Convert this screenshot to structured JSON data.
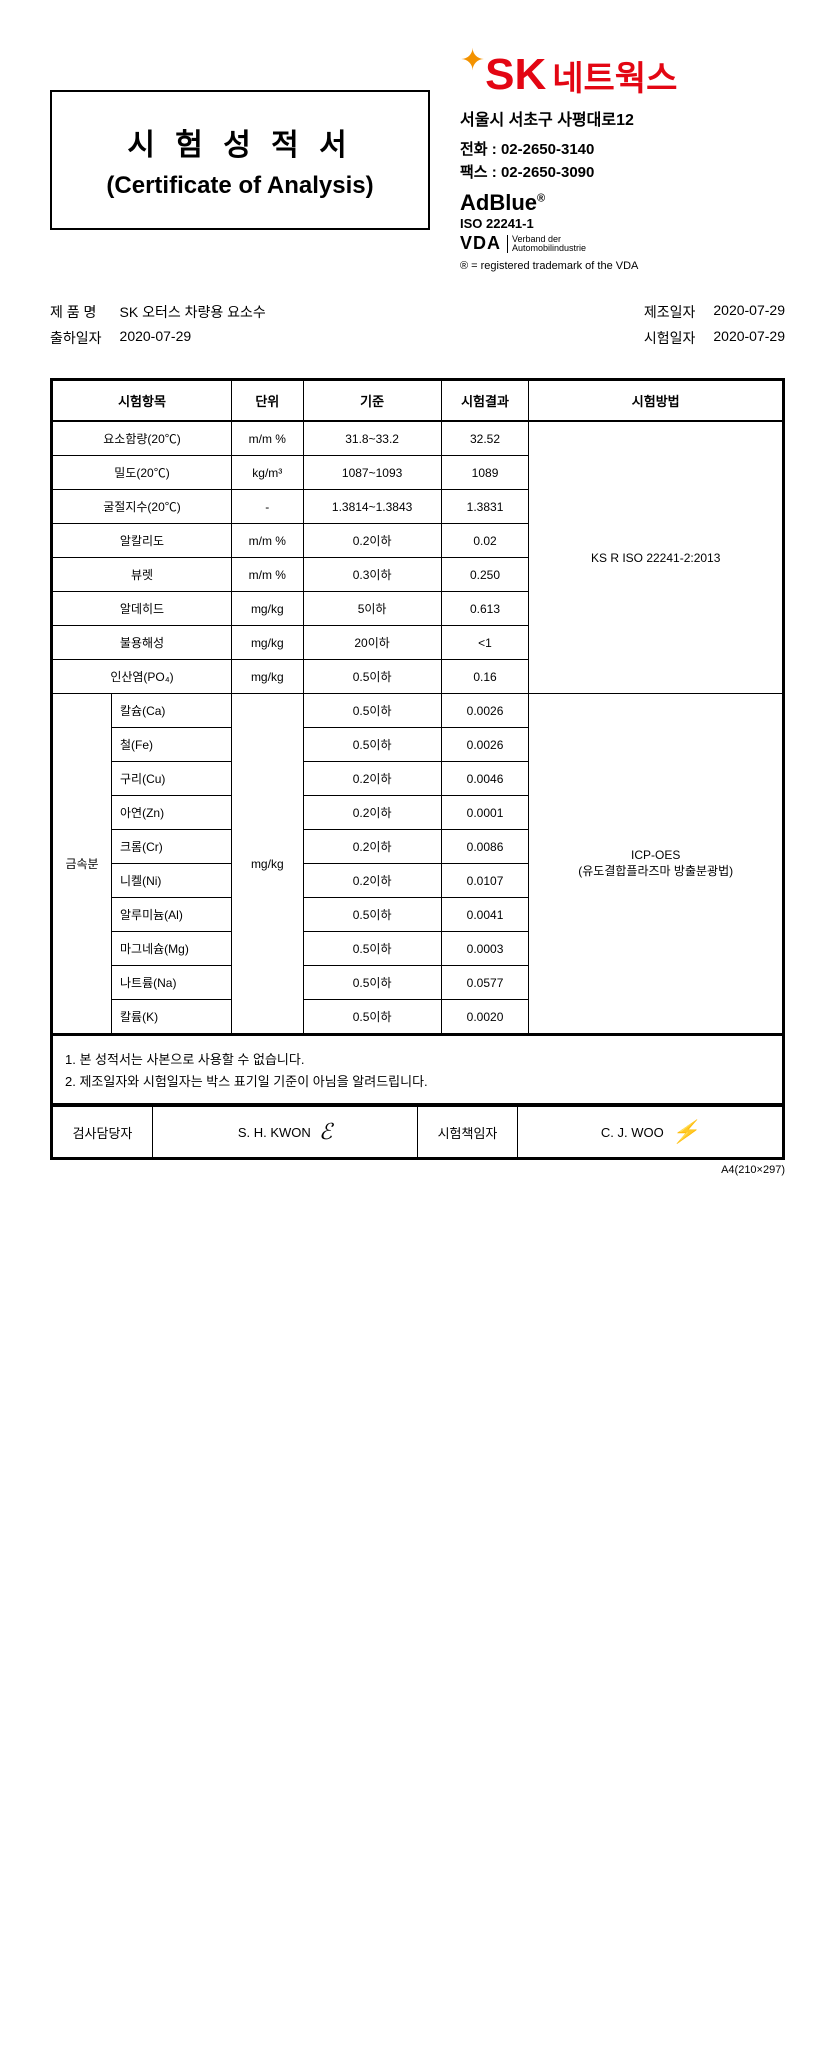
{
  "title": {
    "ko": "시 험 성 적 서",
    "en": "(Certificate of Analysis)"
  },
  "company": {
    "sk": "SK",
    "networks": "네트웍스",
    "address": "서울시 서초구 사평대로12",
    "phone_label": "전화 :",
    "phone": "02-2650-3140",
    "fax_label": "팩스 :",
    "fax": "02-2650-3090",
    "adblue": "AdBlue",
    "reg_mark": "®",
    "iso": "ISO 22241-1",
    "vda": "VDA",
    "vda_sub1": "Verband der",
    "vda_sub2": "Automobilindustrie",
    "reg_note": "® = registered trademark of the VDA"
  },
  "meta": {
    "product_label": "제 품 명",
    "product": "SK 오터스 차량용 요소수",
    "ship_label": "출하일자",
    "ship": "2020-07-29",
    "mfg_label": "제조일자",
    "mfg": "2020-07-29",
    "test_label": "시험일자",
    "test": "2020-07-29"
  },
  "headers": {
    "item": "시험항목",
    "unit": "단위",
    "spec": "기준",
    "result": "시험결과",
    "method": "시험방법"
  },
  "method1": "KS R ISO 22241-2:2013",
  "method2a": "ICP-OES",
  "method2b": "(유도결합플라즈마 방출분광법)",
  "metal_label": "금속분",
  "rows1": [
    {
      "item": "요소함량(20℃)",
      "unit": "m/m %",
      "spec": "31.8~33.2",
      "result": "32.52"
    },
    {
      "item": "밀도(20℃)",
      "unit": "kg/m³",
      "spec": "1087~1093",
      "result": "1089"
    },
    {
      "item": "굴절지수(20℃)",
      "unit": "-",
      "spec": "1.3814~1.3843",
      "result": "1.3831"
    },
    {
      "item": "알칼리도",
      "unit": "m/m %",
      "spec": "0.2이하",
      "result": "0.02"
    },
    {
      "item": "뷰렛",
      "unit": "m/m %",
      "spec": "0.3이하",
      "result": "0.250"
    },
    {
      "item": "알데히드",
      "unit": "mg/kg",
      "spec": "5이하",
      "result": "0.613"
    },
    {
      "item": "불용해성",
      "unit": "mg/kg",
      "spec": "20이하",
      "result": "<1"
    },
    {
      "item": "인산염(PO₄)",
      "unit": "mg/kg",
      "spec": "0.5이하",
      "result": "0.16"
    }
  ],
  "metal_unit": "mg/kg",
  "rows2": [
    {
      "item": "칼슘(Ca)",
      "spec": "0.5이하",
      "result": "0.0026"
    },
    {
      "item": "철(Fe)",
      "spec": "0.5이하",
      "result": "0.0026"
    },
    {
      "item": "구리(Cu)",
      "spec": "0.2이하",
      "result": "0.0046"
    },
    {
      "item": "아연(Zn)",
      "spec": "0.2이하",
      "result": "0.0001"
    },
    {
      "item": "크롬(Cr)",
      "spec": "0.2이하",
      "result": "0.0086"
    },
    {
      "item": "니켈(Ni)",
      "spec": "0.2이하",
      "result": "0.0107"
    },
    {
      "item": "알루미늄(Al)",
      "spec": "0.5이하",
      "result": "0.0041"
    },
    {
      "item": "마그네슘(Mg)",
      "spec": "0.5이하",
      "result": "0.0003"
    },
    {
      "item": "나트륨(Na)",
      "spec": "0.5이하",
      "result": "0.0577"
    },
    {
      "item": "칼륨(K)",
      "spec": "0.5이하",
      "result": "0.0020"
    }
  ],
  "notes": {
    "n1": "1. 본 성적서는 사본으로 사용할 수 없습니다.",
    "n2": "2. 제조일자와 시험일자는 박스 표기일 기준이 아님을 알려드립니다."
  },
  "sign": {
    "l1": "검사담당자",
    "p1": "S. H. KWON",
    "l2": "시험책임자",
    "p2": "C. J. WOO"
  },
  "footer": "A4(210×297)"
}
